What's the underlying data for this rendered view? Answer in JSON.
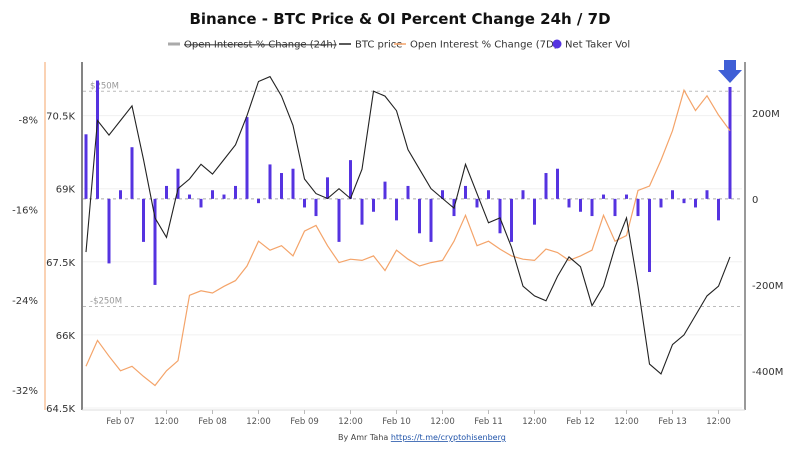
{
  "chart_data": {
    "type": "line",
    "title": "Binance - BTC Price & OI Percent Change 24h / 7D",
    "legend": {
      "placement": "top",
      "entries": [
        {
          "label": "Open Interest % Change (24h)",
          "hidden": true,
          "color": "#aaaaaa"
        },
        {
          "label": "BTC price",
          "color": "#222222"
        },
        {
          "label": "Open Interest % Change (7D)",
          "color": "#f4a46a"
        },
        {
          "label": "Net Taker Vol",
          "color": "#5533e0"
        }
      ]
    },
    "x": [
      "Feb 06 15:00",
      "Feb 06 18:00",
      "Feb 06 21:00",
      "Feb 07 00:00",
      "Feb 07 03:00",
      "Feb 07 06:00",
      "Feb 07 09:00",
      "Feb 07 12:00",
      "Feb 07 15:00",
      "Feb 07 18:00",
      "Feb 07 21:00",
      "Feb 08 00:00",
      "Feb 08 03:00",
      "Feb 08 06:00",
      "Feb 08 09:00",
      "Feb 08 12:00",
      "Feb 08 15:00",
      "Feb 08 18:00",
      "Feb 08 21:00",
      "Feb 09 00:00",
      "Feb 09 03:00",
      "Feb 09 06:00",
      "Feb 09 09:00",
      "Feb 09 12:00",
      "Feb 09 15:00",
      "Feb 09 18:00",
      "Feb 09 21:00",
      "Feb 10 00:00",
      "Feb 10 03:00",
      "Feb 10 06:00",
      "Feb 10 09:00",
      "Feb 10 12:00",
      "Feb 10 15:00",
      "Feb 10 18:00",
      "Feb 10 21:00",
      "Feb 11 00:00",
      "Feb 11 03:00",
      "Feb 11 06:00",
      "Feb 11 09:00",
      "Feb 11 12:00",
      "Feb 11 15:00",
      "Feb 11 18:00",
      "Feb 11 21:00",
      "Feb 12 00:00",
      "Feb 12 03:00",
      "Feb 12 06:00",
      "Feb 12 09:00",
      "Feb 12 12:00",
      "Feb 12 15:00",
      "Feb 12 18:00",
      "Feb 12 21:00",
      "Feb 13 00:00",
      "Feb 13 03:00",
      "Feb 13 06:00",
      "Feb 13 09:00",
      "Feb 13 12:00",
      "Feb 13 15:00"
    ],
    "x_ticks": [
      "Feb 07",
      "12:00",
      "Feb 08",
      "12:00",
      "Feb 09",
      "12:00",
      "Feb 10",
      "12:00",
      "Feb 11",
      "12:00",
      "Feb 12",
      "12:00",
      "Feb 13",
      "12:00"
    ],
    "series": [
      {
        "name": "BTC price",
        "axis": "price",
        "unit": "K",
        "values": [
          67.7,
          70.4,
          70.1,
          70.4,
          70.7,
          69.6,
          68.4,
          68.0,
          69.0,
          69.2,
          69.5,
          69.3,
          69.6,
          69.9,
          70.5,
          71.2,
          71.3,
          70.9,
          70.3,
          69.2,
          68.9,
          68.8,
          69.0,
          68.8,
          69.4,
          71.0,
          70.9,
          70.6,
          69.8,
          69.4,
          69.0,
          68.8,
          68.6,
          69.5,
          68.9,
          68.3,
          68.4,
          67.8,
          67.0,
          66.8,
          66.7,
          67.2,
          67.6,
          67.4,
          66.6,
          67.0,
          67.8,
          68.4,
          67.0,
          65.4,
          65.2,
          65.8,
          66.0,
          66.4,
          66.8,
          67.0,
          67.6
        ]
      },
      {
        "name": "Open Interest % Change (7D)",
        "axis": "oi",
        "unit": "%",
        "values": [
          -29.9,
          -27.6,
          -29,
          -30.3,
          -29.9,
          -30.8,
          -31.6,
          -30.3,
          -29.4,
          -23.6,
          -23.2,
          -23.4,
          -22.8,
          -22.3,
          -21,
          -18.8,
          -19.6,
          -19.2,
          -20.1,
          -17.9,
          -17.4,
          -19.2,
          -20.7,
          -20.4,
          -20.5,
          -20.1,
          -21.4,
          -19.6,
          -20.4,
          -21,
          -20.7,
          -20.5,
          -18.8,
          -16.5,
          -19.2,
          -18.8,
          -19.5,
          -20.1,
          -20.4,
          -20.5,
          -19.5,
          -19.8,
          -20.5,
          -20.1,
          -19.6,
          -16.5,
          -18.8,
          -18.3,
          -14.3,
          -13.9,
          -11.6,
          -9,
          -5.4,
          -7.2,
          -5.9,
          -7.6,
          -9
        ]
      },
      {
        "name": "Net Taker Vol",
        "axis": "vol",
        "unit": "M",
        "type": "bar",
        "values": [
          150,
          275,
          -150,
          20,
          120,
          -100,
          -200,
          30,
          70,
          10,
          -20,
          20,
          10,
          30,
          190,
          -10,
          80,
          60,
          70,
          -20,
          -40,
          50,
          -100,
          90,
          -60,
          -30,
          40,
          -50,
          30,
          -80,
          -100,
          20,
          -40,
          30,
          -20,
          20,
          -80,
          -100,
          20,
          -60,
          60,
          70,
          -20,
          -30,
          -40,
          10,
          -40,
          10,
          -40,
          -170,
          -20,
          20,
          -10,
          -20,
          20,
          -50,
          260
        ]
      }
    ],
    "axes": {
      "oi": {
        "ticks": [
          "-8%",
          "-16%",
          "-24%",
          "-32%"
        ],
        "tick_values": [
          -8,
          -16,
          -24,
          -32
        ],
        "range": [
          -33.6,
          -2.9
        ],
        "color": "#f4a46a"
      },
      "price": {
        "ticks": [
          "70.5K",
          "69K",
          "67.5K",
          "66K",
          "64.5K"
        ],
        "tick_values": [
          70.5,
          69,
          67.5,
          66,
          64.5
        ],
        "range": [
          64.5,
          71.6
        ]
      },
      "vol": {
        "ticks": [
          "200M",
          "0",
          "-200M",
          "-400M"
        ],
        "tick_values": [
          200,
          0,
          -200,
          -400
        ],
        "range": [
          -486,
          318
        ]
      }
    },
    "reference_lines": [
      {
        "label": "$250M",
        "value": 250
      },
      {
        "label": "-$250M",
        "value": -250
      }
    ],
    "grid": true,
    "annotation": "blue arrow pointing down at latest Net Taker Vol bar",
    "footer": {
      "text": "By Amr Taha ",
      "link": "https://t.me/cryptohisenberg"
    }
  }
}
